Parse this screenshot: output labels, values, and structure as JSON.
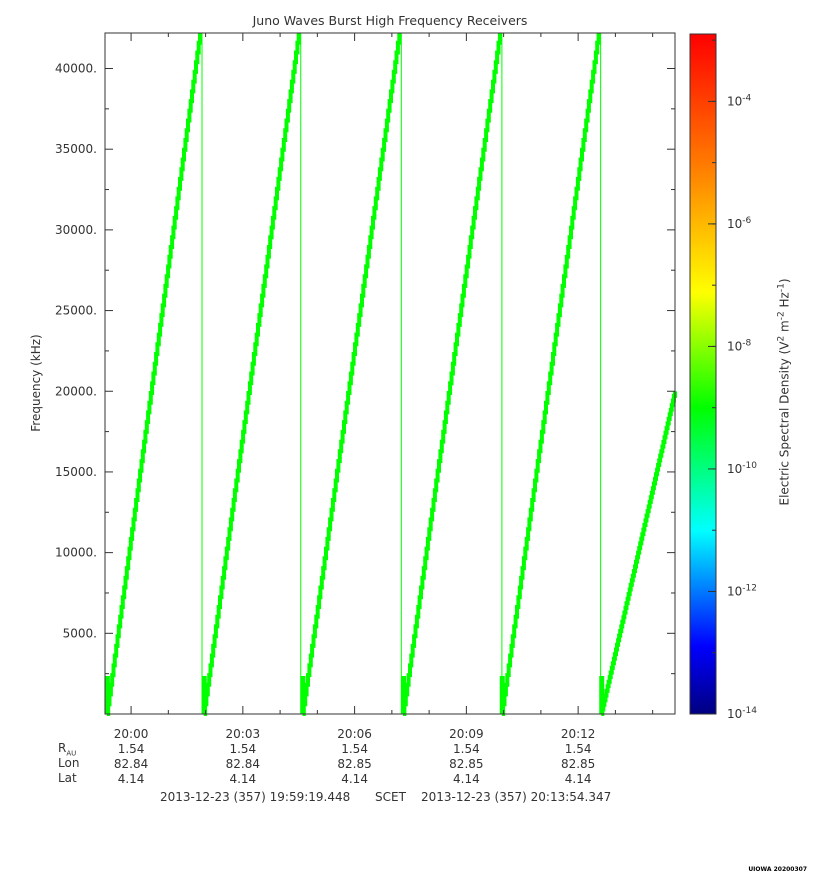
{
  "chart_data": {
    "type": "heatmap",
    "title": "Juno Waves Burst High Frequency Receivers",
    "ylabel": "Frequency (kHz)",
    "ylim": [
      0,
      42200
    ],
    "yticks": [
      {
        "value": 5000,
        "label": "5000."
      },
      {
        "value": 10000,
        "label": "10000."
      },
      {
        "value": 15000,
        "label": "15000."
      },
      {
        "value": 20000,
        "label": "20000."
      },
      {
        "value": 25000,
        "label": "25000."
      },
      {
        "value": 30000,
        "label": "30000."
      },
      {
        "value": 35000,
        "label": "35000."
      },
      {
        "value": 40000,
        "label": "40000."
      }
    ],
    "xlim_min": [
      -0.7,
      14.6
    ],
    "xticks": [
      {
        "value": 0,
        "label": "20:00"
      },
      {
        "value": 3,
        "label": "20:03"
      },
      {
        "value": 6,
        "label": "20:06"
      },
      {
        "value": 9,
        "label": "20:09"
      },
      {
        "value": 12,
        "label": "20:12"
      }
    ],
    "ephemeris": {
      "labels": {
        "r_main": "R",
        "r_sub": "AU",
        "lon": "Lon",
        "lat": "Lat"
      },
      "rows": [
        {
          "time": "20:00",
          "r": "1.54",
          "lon": "82.84",
          "lat": "4.14"
        },
        {
          "time": "20:03",
          "r": "1.54",
          "lon": "82.84",
          "lat": "4.14"
        },
        {
          "time": "20:06",
          "r": "1.54",
          "lon": "82.85",
          "lat": "4.14"
        },
        {
          "time": "20:09",
          "r": "1.54",
          "lon": "82.85",
          "lat": "4.14"
        },
        {
          "time": "20:12",
          "r": "1.54",
          "lon": "82.85",
          "lat": "4.14"
        }
      ]
    },
    "time_range": {
      "start": "2013-12-23 (357) 19:59:19.448",
      "label": "SCET",
      "end": "2013-12-23 (357) 20:13:54.347"
    },
    "colorbar": {
      "label": "Electric Spectral Density (V2 m-2 Hz-1)",
      "scale": "log",
      "range_exp": [
        -14,
        -2.9
      ],
      "ticks": [
        {
          "exp": -14,
          "label": "10",
          "sup": "-14"
        },
        {
          "exp": -12,
          "label": "10",
          "sup": "-12"
        },
        {
          "exp": -10,
          "label": "10",
          "sup": "-10"
        },
        {
          "exp": -8,
          "label": "10",
          "sup": "-8"
        },
        {
          "exp": -6,
          "label": "10",
          "sup": "-6"
        },
        {
          "exp": -4,
          "label": "10",
          "sup": "-4"
        }
      ]
    },
    "sweeps": [
      {
        "start_min": -0.65,
        "end_min": 1.85,
        "end_freq_khz": 42200
      },
      {
        "start_min": 1.95,
        "end_min": 4.5,
        "end_freq_khz": 42200
      },
      {
        "start_min": 4.6,
        "end_min": 7.2,
        "end_freq_khz": 42200
      },
      {
        "start_min": 7.3,
        "end_min": 9.9,
        "end_freq_khz": 42200
      },
      {
        "start_min": 9.95,
        "end_min": 12.55,
        "end_freq_khz": 42200
      },
      {
        "start_min": 12.62,
        "end_min": 14.6,
        "end_freq_khz": 20000
      }
    ],
    "sweep_level_exp": -9.0,
    "footer_stamp": "UIOWA 20200307"
  }
}
